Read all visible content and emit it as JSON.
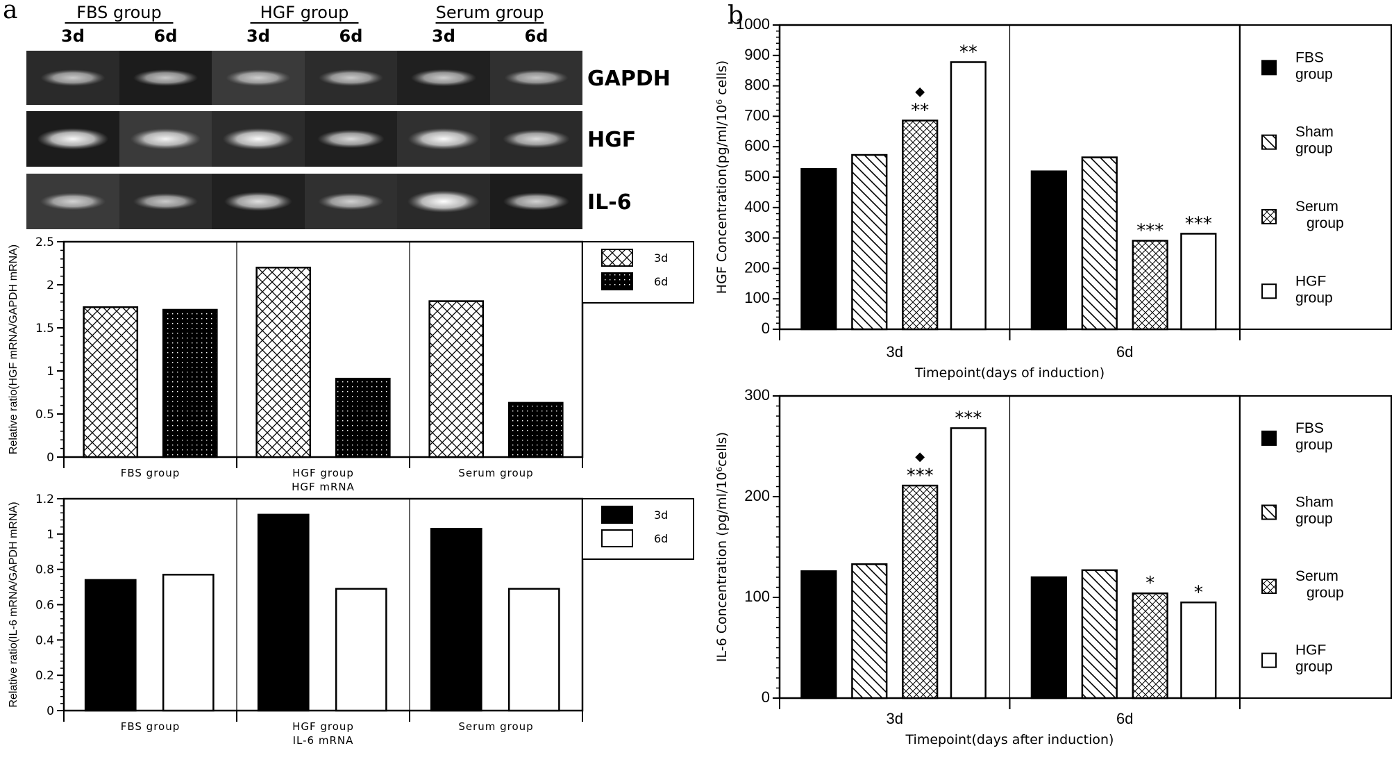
{
  "panel_labels": {
    "a": "a",
    "b": "b"
  },
  "gel": {
    "groups": [
      "FBS group",
      "HGF group",
      "Serum group"
    ],
    "lanes": [
      "3d",
      "6d",
      "3d",
      "6d",
      "3d",
      "6d"
    ],
    "genes": [
      "GAPDH",
      "HGF",
      "IL-6"
    ],
    "band_intensity": [
      [
        0.55,
        0.55,
        0.55,
        0.55,
        0.6,
        0.5
      ],
      [
        0.95,
        0.9,
        0.95,
        0.7,
        0.95,
        0.7
      ],
      [
        0.6,
        0.55,
        0.75,
        0.6,
        1.0,
        0.65
      ]
    ]
  },
  "chart_data": [
    {
      "type": "bar",
      "categories": [
        "FBS group",
        "HGF group",
        "Serum group"
      ],
      "xlabel": "HGF mRNA",
      "ylabel": "Relative ratio(HGF mRNA/GAPDH mRNA)",
      "ylim": [
        0,
        2.5
      ],
      "yticks": [
        "0",
        "0.5",
        "1",
        "1.5",
        "2",
        "2.5"
      ],
      "legend": "right",
      "series": [
        {
          "name": "3d",
          "pattern": "crosshatch",
          "values": [
            1.74,
            2.2,
            1.81
          ]
        },
        {
          "name": "6d",
          "pattern": "dots",
          "values": [
            1.71,
            0.91,
            0.63
          ]
        }
      ]
    },
    {
      "type": "bar",
      "categories": [
        "FBS group",
        "HGF group",
        "Serum group"
      ],
      "xlabel": "IL-6 mRNA",
      "ylabel": "Relative ratio(IL-6 mRNA/GAPDH mRNA)",
      "ylim": [
        0,
        1.2
      ],
      "yticks": [
        "0",
        "0.2",
        "0.4",
        "0.6",
        "0.8",
        "1",
        "1.2"
      ],
      "legend": "right",
      "series": [
        {
          "name": "3d",
          "pattern": "solid-black",
          "values": [
            0.74,
            1.11,
            1.03
          ]
        },
        {
          "name": "6d",
          "pattern": "white",
          "values": [
            0.77,
            0.69,
            0.69
          ]
        }
      ]
    },
    {
      "type": "bar",
      "categories": [
        "3d",
        "6d"
      ],
      "xlabel": "Timepoint(days of induction)",
      "ylabel": "HGF Concentration(pg/ml/10⁶ cells)",
      "ylim": [
        0,
        1000
      ],
      "yticks": [
        "0",
        "100",
        "200",
        "300",
        "400",
        "500",
        "600",
        "700",
        "800",
        "900",
        "1000"
      ],
      "legend": "right",
      "series": [
        {
          "name": "FBS group",
          "pattern": "solid-black",
          "values": [
            527,
            519
          ],
          "annotations": [
            "",
            ""
          ]
        },
        {
          "name": "Sham group",
          "pattern": "diagonal",
          "values": [
            573,
            565
          ],
          "annotations": [
            "",
            ""
          ]
        },
        {
          "name": "Serum group",
          "pattern": "crosshatch-small",
          "values": [
            686,
            291
          ],
          "annotations": [
            "◆\n**",
            "***"
          ]
        },
        {
          "name": "HGF group",
          "pattern": "white",
          "values": [
            878,
            314
          ],
          "annotations": [
            "**",
            "***"
          ]
        }
      ]
    },
    {
      "type": "bar",
      "categories": [
        "3d",
        "6d"
      ],
      "xlabel": "Timepoint(days after induction)",
      "ylabel": "IL-6 Concentration (pg/ml/10⁶cells)",
      "ylim": [
        0,
        300
      ],
      "yticks": [
        "0",
        "100",
        "200",
        "300"
      ],
      "legend": "right",
      "series": [
        {
          "name": "FBS group",
          "pattern": "solid-black",
          "values": [
            126,
            120
          ],
          "annotations": [
            "",
            ""
          ]
        },
        {
          "name": "Sham group",
          "pattern": "diagonal",
          "values": [
            133,
            127
          ],
          "annotations": [
            "",
            ""
          ]
        },
        {
          "name": "Serum group",
          "pattern": "crosshatch-small",
          "values": [
            211,
            104
          ],
          "annotations": [
            "◆\n***",
            "*"
          ]
        },
        {
          "name": "HGF group",
          "pattern": "white",
          "values": [
            268,
            95
          ],
          "annotations": [
            "***",
            "*"
          ]
        }
      ]
    }
  ]
}
